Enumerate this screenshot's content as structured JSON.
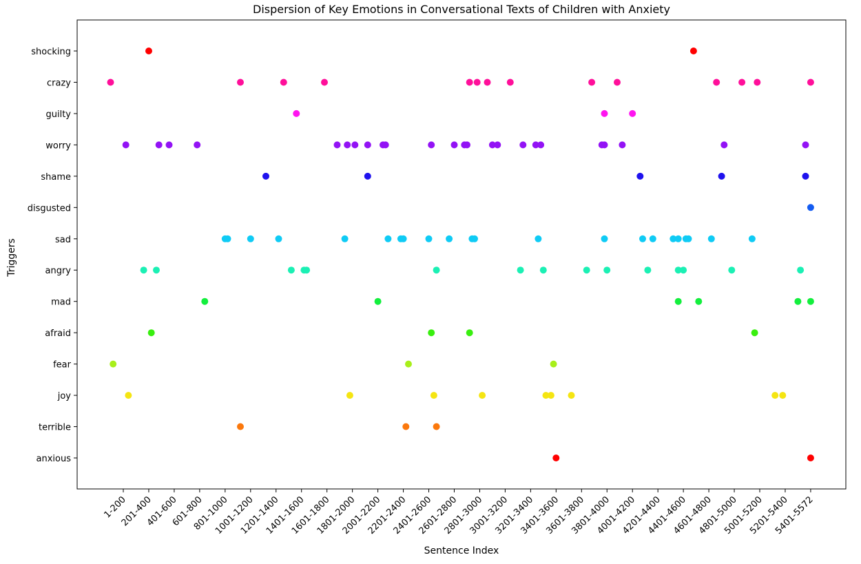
{
  "chart_data": {
    "type": "scatter",
    "title": "Dispersion of Key Emotions in Conversational Texts of Children with Anxiety",
    "xlabel": "Sentence Index",
    "ylabel": "Triggers",
    "xlim": [
      -15,
      28
    ],
    "grid": false,
    "x_categories": [
      "1-200",
      "201-400",
      "401-600",
      "601-800",
      "801-1000",
      "1001-1200",
      "1201-1400",
      "1401-1600",
      "1601-1800",
      "1801-2000",
      "2001-2200",
      "2201-2400",
      "2401-2600",
      "2601-2800",
      "2801-3000",
      "3001-3200",
      "3201-3400",
      "3401-3600",
      "3601-3800",
      "3801-4000",
      "4001-4200",
      "4201-4400",
      "4401-4600",
      "4601-4800",
      "4801-5000",
      "5001-5200",
      "5201-5400",
      "5401-5572"
    ],
    "categories": [
      "anxious",
      "terrible",
      "joy",
      "fear",
      "afraid",
      "mad",
      "angry",
      "sad",
      "disgusted",
      "shame",
      "worry",
      "guilty",
      "crazy",
      "shocking"
    ],
    "series": [
      {
        "color": "#ff0000",
        "y": "shocking",
        "x": [
          1.0,
          22.4
        ]
      },
      {
        "color": "#ff0f9a",
        "y": "crazy",
        "x": [
          -0.5,
          4.6,
          6.3,
          7.9,
          13.6,
          13.9,
          14.3,
          15.2,
          18.4,
          19.4,
          23.3,
          24.3,
          24.9,
          27.0
        ]
      },
      {
        "color": "#ff14f0",
        "y": "guilty",
        "x": [
          6.8,
          18.9,
          20.0
        ]
      },
      {
        "color": "#9313f5",
        "y": "worry",
        "x": [
          0.1,
          1.4,
          1.8,
          2.9,
          8.4,
          8.8,
          9.1,
          9.6,
          10.2,
          10.3,
          12.1,
          13.0,
          13.4,
          13.5,
          14.5,
          14.7,
          15.7,
          16.2,
          16.4,
          18.8,
          18.9,
          19.6,
          23.6,
          26.8
        ]
      },
      {
        "color": "#1f12ee",
        "y": "shame",
        "x": [
          5.6,
          9.6,
          20.3,
          23.5,
          26.8
        ]
      },
      {
        "color": "#145cf1",
        "y": "disgusted",
        "x": [
          27.0
        ]
      },
      {
        "color": "#0fcbf5",
        "y": "sad",
        "x": [
          4.0,
          4.1,
          5.0,
          6.1,
          8.7,
          10.4,
          10.9,
          11.0,
          12.0,
          12.8,
          13.7,
          13.8,
          16.3,
          18.9,
          20.4,
          20.8,
          21.6,
          21.8,
          22.1,
          22.2,
          23.1,
          24.7
        ]
      },
      {
        "color": "#1bf0b4",
        "y": "angry",
        "x": [
          0.8,
          1.3,
          6.6,
          7.1,
          7.2,
          12.3,
          15.6,
          16.5,
          18.2,
          19.0,
          20.6,
          21.8,
          22.0,
          23.9,
          26.6
        ]
      },
      {
        "color": "#13ef3d",
        "y": "mad",
        "x": [
          3.2,
          10.0,
          21.8,
          22.6,
          26.5,
          27.0
        ]
      },
      {
        "color": "#39ef0f",
        "y": "afraid",
        "x": [
          1.1,
          12.1,
          13.6,
          24.8
        ]
      },
      {
        "color": "#a8ef1a",
        "y": "fear",
        "x": [
          -0.4,
          11.2,
          16.9
        ]
      },
      {
        "color": "#f5e512",
        "y": "joy",
        "x": [
          0.2,
          8.9,
          12.2,
          14.1,
          16.6,
          16.8,
          17.6,
          25.6,
          25.9
        ]
      },
      {
        "color": "#fb780c",
        "y": "terrible",
        "x": [
          4.6,
          11.1,
          12.3
        ]
      },
      {
        "color": "#ff0000",
        "y": "anxious",
        "x": [
          17.0,
          27.0
        ]
      }
    ]
  }
}
